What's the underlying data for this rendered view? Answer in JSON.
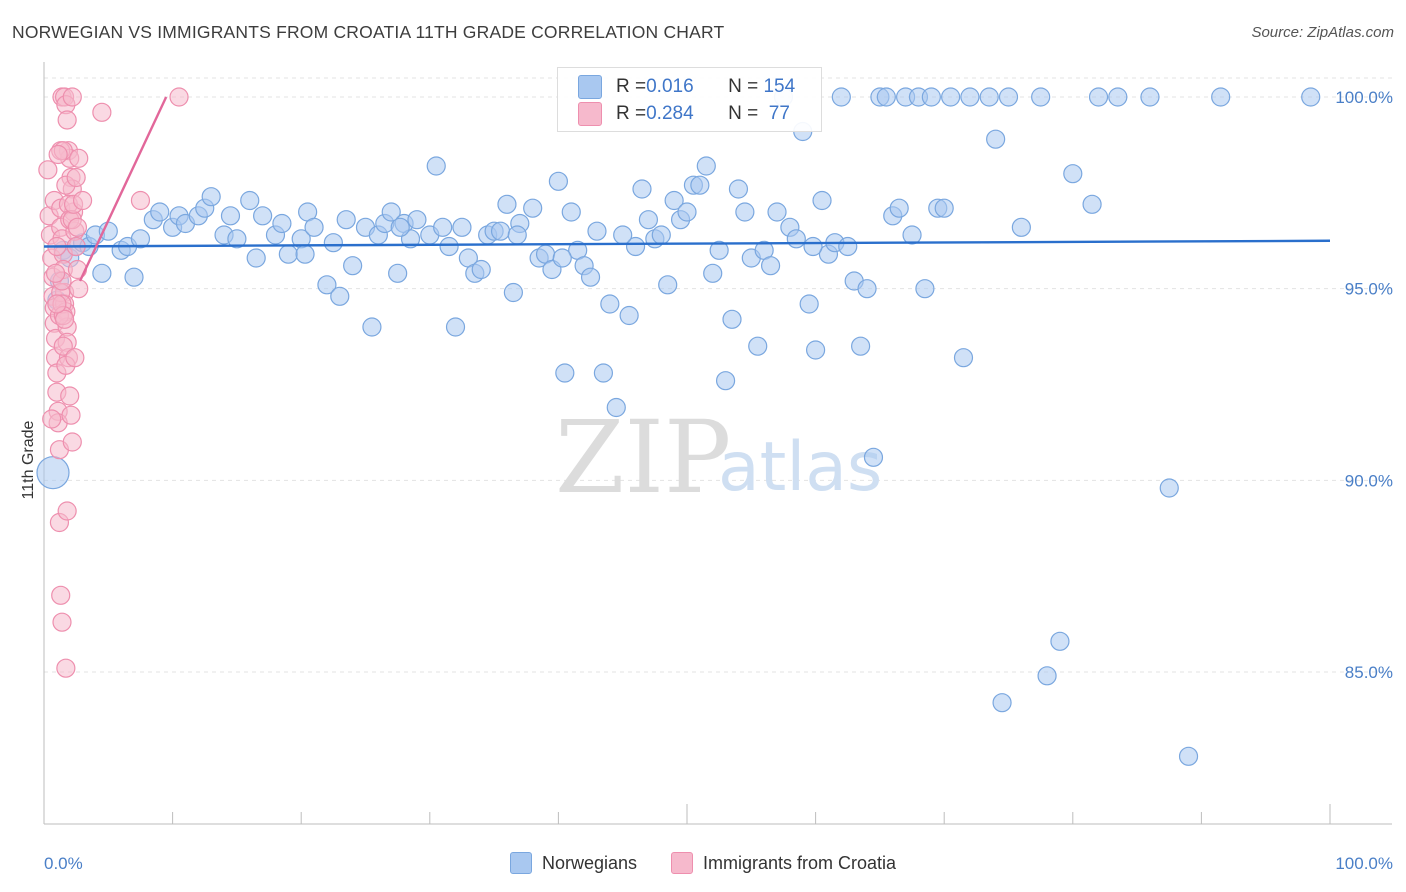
{
  "title": "NORWEGIAN VS IMMIGRANTS FROM CROATIA 11TH GRADE CORRELATION CHART",
  "source": "Source: ZipAtlas.com",
  "watermark": {
    "zip": "ZIP",
    "atlas": "atlas"
  },
  "colors": {
    "blue_fill": "#a9c8f0",
    "blue_stroke": "#7aa7df",
    "blue_line": "#2a6fcc",
    "pink_fill": "#f6b9cc",
    "pink_stroke": "#ee8fae",
    "pink_line": "#e2679a",
    "axis_text": "#4a7fc7"
  },
  "legend_top": {
    "rows": [
      {
        "r_label": "R = ",
        "r_value": "0.016",
        "n_label": "N = ",
        "n_value": "154"
      },
      {
        "r_label": "R = ",
        "r_value": "0.284",
        "n_label": "N = ",
        "n_value": " 77"
      }
    ]
  },
  "legend_bottom": [
    "Norwegians",
    "Immigrants from Croatia"
  ],
  "chart_data": {
    "type": "scatter",
    "ylabel": "11th Grade",
    "xlim": [
      0,
      100
    ],
    "ylim": [
      80.0,
      100.5
    ],
    "x_ticks": [
      "0.0%",
      "100.0%"
    ],
    "y_ticks": [
      {
        "v": 100,
        "label": "100.0%"
      },
      {
        "v": 95,
        "label": "95.0%"
      },
      {
        "v": 90,
        "label": "90.0%"
      },
      {
        "v": 85,
        "label": "85.0%"
      }
    ],
    "grid": true,
    "series": [
      {
        "name": "Norwegians",
        "trend": {
          "x": [
            0,
            100
          ],
          "y": [
            96.1,
            96.25
          ]
        },
        "points": [
          [
            0.7,
            90.2
          ],
          [
            1.0,
            94.7
          ],
          [
            1.2,
            95.2
          ],
          [
            1.5,
            96.0
          ],
          [
            2.0,
            95.8
          ],
          [
            2.5,
            96.1
          ],
          [
            3.0,
            96.2
          ],
          [
            3.5,
            96.1
          ],
          [
            4.0,
            96.4
          ],
          [
            4.5,
            95.4
          ],
          [
            5.0,
            96.5
          ],
          [
            6.0,
            96.0
          ],
          [
            6.5,
            96.1
          ],
          [
            7.0,
            95.3
          ],
          [
            7.5,
            96.3
          ],
          [
            8.5,
            96.8
          ],
          [
            9.0,
            97.0
          ],
          [
            10.0,
            96.6
          ],
          [
            10.5,
            96.9
          ],
          [
            11.0,
            96.7
          ],
          [
            12.0,
            96.9
          ],
          [
            12.5,
            97.1
          ],
          [
            13.0,
            97.4
          ],
          [
            14.0,
            96.4
          ],
          [
            14.5,
            96.9
          ],
          [
            15.0,
            96.3
          ],
          [
            16.0,
            97.3
          ],
          [
            16.5,
            95.8
          ],
          [
            17.0,
            96.9
          ],
          [
            18.0,
            96.4
          ],
          [
            18.5,
            96.7
          ],
          [
            19.0,
            95.9
          ],
          [
            20.0,
            96.3
          ],
          [
            20.5,
            97.0
          ],
          [
            21.0,
            96.6
          ],
          [
            22.0,
            95.1
          ],
          [
            22.5,
            96.2
          ],
          [
            23.0,
            94.8
          ],
          [
            23.5,
            96.8
          ],
          [
            24.0,
            95.6
          ],
          [
            25.0,
            96.6
          ],
          [
            25.5,
            94.0
          ],
          [
            26.0,
            96.4
          ],
          [
            26.5,
            96.7
          ],
          [
            27.0,
            97.0
          ],
          [
            27.5,
            95.4
          ],
          [
            28.0,
            96.7
          ],
          [
            28.5,
            96.3
          ],
          [
            29.0,
            96.8
          ],
          [
            30.0,
            96.4
          ],
          [
            30.5,
            98.2
          ],
          [
            31.0,
            96.6
          ],
          [
            31.5,
            96.1
          ],
          [
            32.0,
            94.0
          ],
          [
            32.5,
            96.6
          ],
          [
            33.0,
            95.8
          ],
          [
            33.5,
            95.4
          ],
          [
            34.0,
            95.5
          ],
          [
            34.5,
            96.4
          ],
          [
            35.0,
            96.5
          ],
          [
            35.5,
            96.5
          ],
          [
            36.0,
            97.2
          ],
          [
            36.5,
            94.9
          ],
          [
            37.0,
            96.7
          ],
          [
            38.0,
            97.1
          ],
          [
            38.5,
            95.8
          ],
          [
            39.0,
            95.9
          ],
          [
            39.5,
            95.5
          ],
          [
            40.0,
            97.8
          ],
          [
            40.5,
            92.8
          ],
          [
            41.0,
            97.0
          ],
          [
            41.5,
            96.0
          ],
          [
            42.0,
            95.6
          ],
          [
            42.5,
            95.3
          ],
          [
            43.0,
            96.5
          ],
          [
            43.5,
            92.8
          ],
          [
            44.0,
            94.6
          ],
          [
            44.5,
            91.9
          ],
          [
            45.5,
            94.3
          ],
          [
            46.0,
            96.1
          ],
          [
            46.5,
            97.6
          ],
          [
            47.0,
            96.8
          ],
          [
            47.5,
            96.3
          ],
          [
            48.0,
            96.4
          ],
          [
            48.5,
            95.1
          ],
          [
            49.0,
            97.3
          ],
          [
            49.5,
            96.8
          ],
          [
            50.0,
            97.0
          ],
          [
            50.5,
            97.7
          ],
          [
            51.0,
            97.7
          ],
          [
            51.5,
            98.2
          ],
          [
            52.0,
            95.4
          ],
          [
            52.5,
            96.0
          ],
          [
            53.0,
            92.6
          ],
          [
            53.5,
            94.2
          ],
          [
            54.0,
            97.6
          ],
          [
            54.5,
            97.0
          ],
          [
            55.0,
            95.8
          ],
          [
            55.5,
            93.5
          ],
          [
            56.0,
            96.0
          ],
          [
            56.5,
            95.6
          ],
          [
            57.0,
            97.0
          ],
          [
            57.5,
            100.0
          ],
          [
            58.0,
            96.6
          ],
          [
            58.5,
            96.3
          ],
          [
            59.0,
            99.1
          ],
          [
            59.5,
            94.6
          ],
          [
            60.0,
            93.4
          ],
          [
            60.5,
            97.3
          ],
          [
            61.0,
            95.9
          ],
          [
            61.5,
            96.2
          ],
          [
            62.0,
            100.0
          ],
          [
            63.0,
            95.2
          ],
          [
            63.5,
            93.5
          ],
          [
            64.0,
            95.0
          ],
          [
            64.5,
            90.6
          ],
          [
            65.0,
            100.0
          ],
          [
            65.5,
            100.0
          ],
          [
            66.0,
            96.9
          ],
          [
            66.5,
            97.1
          ],
          [
            67.0,
            100.0
          ],
          [
            67.5,
            96.4
          ],
          [
            68.0,
            100.0
          ],
          [
            68.5,
            95.0
          ],
          [
            69.0,
            100.0
          ],
          [
            69.5,
            97.1
          ],
          [
            70.0,
            97.1
          ],
          [
            70.5,
            100.0
          ],
          [
            71.5,
            93.2
          ],
          [
            72.0,
            100.0
          ],
          [
            73.5,
            100.0
          ],
          [
            74.0,
            98.9
          ],
          [
            74.5,
            84.2
          ],
          [
            75.0,
            100.0
          ],
          [
            76.0,
            96.6
          ],
          [
            77.5,
            100.0
          ],
          [
            78.0,
            84.9
          ],
          [
            79.0,
            85.8
          ],
          [
            80.0,
            98.0
          ],
          [
            81.5,
            97.2
          ],
          [
            82.0,
            100.0
          ],
          [
            83.5,
            100.0
          ],
          [
            86.0,
            100.0
          ],
          [
            87.5,
            89.8
          ],
          [
            89.0,
            82.8
          ],
          [
            91.5,
            100.0
          ],
          [
            98.5,
            100.0
          ],
          [
            62.5,
            96.1
          ],
          [
            20.3,
            95.9
          ],
          [
            36.8,
            96.4
          ],
          [
            45.0,
            96.4
          ],
          [
            59.8,
            96.1
          ],
          [
            27.7,
            96.6
          ],
          [
            40.3,
            95.8
          ]
        ]
      },
      {
        "name": "Immigrants from Croatia",
        "trend": {
          "x": [
            2.8,
            9.5
          ],
          "y": [
            95.2,
            100.0
          ]
        },
        "points": [
          [
            0.3,
            98.1
          ],
          [
            0.4,
            96.9
          ],
          [
            0.5,
            96.4
          ],
          [
            0.6,
            95.8
          ],
          [
            0.7,
            95.3
          ],
          [
            0.7,
            94.8
          ],
          [
            0.8,
            94.5
          ],
          [
            0.8,
            94.1
          ],
          [
            0.9,
            93.7
          ],
          [
            0.9,
            93.2
          ],
          [
            1.0,
            92.8
          ],
          [
            1.0,
            92.3
          ],
          [
            1.1,
            91.8
          ],
          [
            1.1,
            91.5
          ],
          [
            0.6,
            91.6
          ],
          [
            1.2,
            90.8
          ],
          [
            1.2,
            88.9
          ],
          [
            0.8,
            97.3
          ],
          [
            1.3,
            97.1
          ],
          [
            1.3,
            96.6
          ],
          [
            1.4,
            96.3
          ],
          [
            1.5,
            95.9
          ],
          [
            1.5,
            95.5
          ],
          [
            1.6,
            94.9
          ],
          [
            1.6,
            94.6
          ],
          [
            1.7,
            94.4
          ],
          [
            1.8,
            94.0
          ],
          [
            1.8,
            93.6
          ],
          [
            1.9,
            93.2
          ],
          [
            2.0,
            92.2
          ],
          [
            2.1,
            91.7
          ],
          [
            2.2,
            91.0
          ],
          [
            1.4,
            100.0
          ],
          [
            1.6,
            100.0
          ],
          [
            1.7,
            99.8
          ],
          [
            1.8,
            99.4
          ],
          [
            1.9,
            98.6
          ],
          [
            2.0,
            98.4
          ],
          [
            2.1,
            97.9
          ],
          [
            2.2,
            97.6
          ],
          [
            2.3,
            97.0
          ],
          [
            2.4,
            96.5
          ],
          [
            2.5,
            96.1
          ],
          [
            2.6,
            95.5
          ],
          [
            2.7,
            95.0
          ],
          [
            1.3,
            98.6
          ],
          [
            1.5,
            98.6
          ],
          [
            1.7,
            97.7
          ],
          [
            1.9,
            97.2
          ],
          [
            2.0,
            96.8
          ],
          [
            2.2,
            96.8
          ],
          [
            2.3,
            97.2
          ],
          [
            1.2,
            94.3
          ],
          [
            1.3,
            94.9
          ],
          [
            1.4,
            94.6
          ],
          [
            1.5,
            94.3
          ],
          [
            1.6,
            94.2
          ],
          [
            1.4,
            95.2
          ],
          [
            1.5,
            93.5
          ],
          [
            1.7,
            93.0
          ],
          [
            1.8,
            89.2
          ],
          [
            1.3,
            87.0
          ],
          [
            1.4,
            86.3
          ],
          [
            1.7,
            85.1
          ],
          [
            2.4,
            93.2
          ],
          [
            2.7,
            98.4
          ],
          [
            3.0,
            97.3
          ],
          [
            4.5,
            99.6
          ],
          [
            7.5,
            97.3
          ],
          [
            10.5,
            100.0
          ],
          [
            2.5,
            97.9
          ],
          [
            1.1,
            98.5
          ],
          [
            1.0,
            96.1
          ],
          [
            0.9,
            95.4
          ],
          [
            1.0,
            94.6
          ],
          [
            2.2,
            100.0
          ],
          [
            2.6,
            96.6
          ]
        ]
      }
    ]
  }
}
